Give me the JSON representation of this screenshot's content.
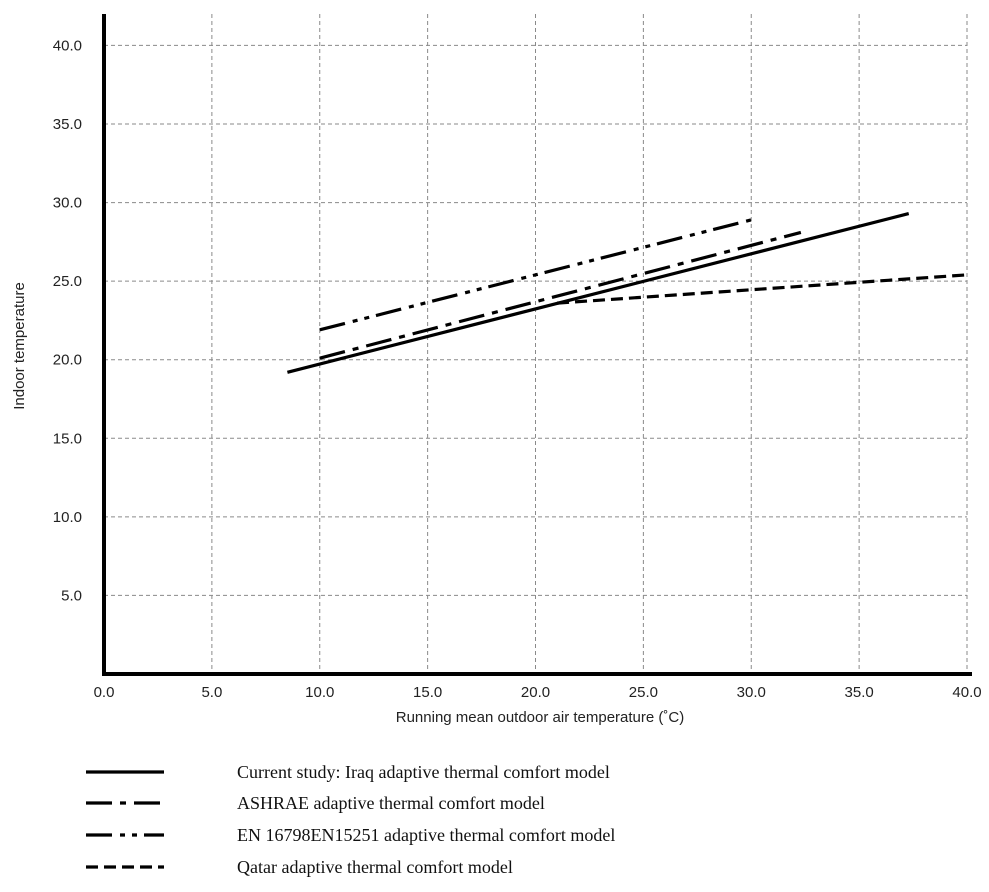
{
  "chart_data": {
    "type": "line",
    "xlabel": "Running mean outdoor air temperature (˚C)",
    "ylabel": "Indoor temperature",
    "xlim": [
      0,
      40
    ],
    "ylim": [
      0,
      42
    ],
    "x_ticks": [
      "0.0",
      "5.0",
      "10.0",
      "15.0",
      "20.0",
      "25.0",
      "30.0",
      "35.0",
      "40.0"
    ],
    "y_ticks": [
      "5.0",
      "10.0",
      "15.0",
      "20.0",
      "25.0",
      "30.0",
      "35.0",
      "40.0"
    ],
    "x_tick_values": [
      0,
      5,
      10,
      15,
      20,
      25,
      30,
      35,
      40
    ],
    "y_tick_values": [
      5,
      10,
      15,
      20,
      25,
      30,
      35,
      40
    ],
    "grid": true,
    "legend_position": "bottom",
    "series": [
      {
        "name": "Current study: Iraq adaptive thermal comfort model",
        "style": "solid",
        "x": [
          8.5,
          37.3
        ],
        "y": [
          19.2,
          29.3
        ]
      },
      {
        "name": "ASHRAE adaptive thermal comfort model",
        "style": "dash-dot",
        "x": [
          10,
          32.3
        ],
        "y": [
          20.1,
          28.1
        ]
      },
      {
        "name": "EN 16798EN15251 adaptive thermal comfort model",
        "style": "dash-dot-dot",
        "x": [
          10,
          30
        ],
        "y": [
          21.9,
          28.9
        ]
      },
      {
        "name": "Qatar adaptive thermal comfort model",
        "style": "dashed",
        "x": [
          21,
          40
        ],
        "y": [
          23.6,
          25.4
        ]
      }
    ]
  }
}
